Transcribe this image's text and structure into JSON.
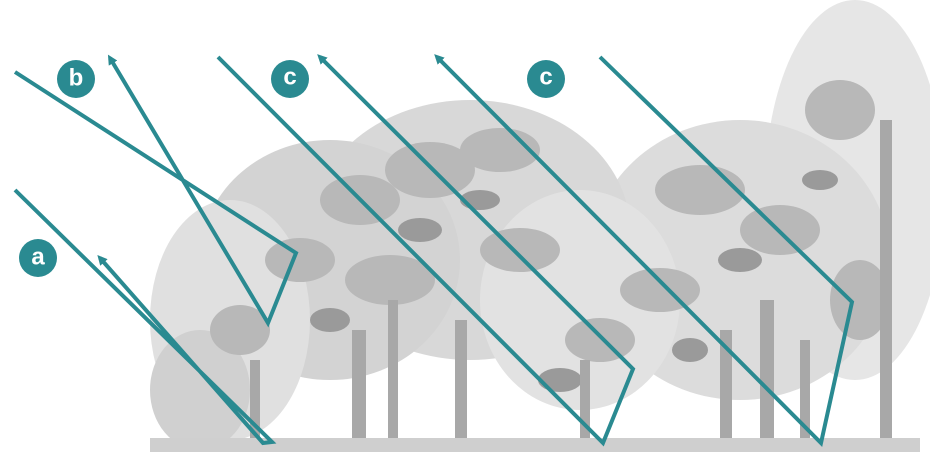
{
  "labels": {
    "a": "a",
    "b": "b",
    "c1": "c",
    "c2": "c"
  },
  "colors": {
    "ray": "#2a8a91",
    "badge": "#2a8a91",
    "ground": "#cfcfcf",
    "tree_light": "#e3e3e3",
    "tree_mid": "#c2c2c2",
    "tree_dark": "#8f8f8f"
  },
  "icons": {
    "arrowhead": "arrowhead-icon"
  }
}
